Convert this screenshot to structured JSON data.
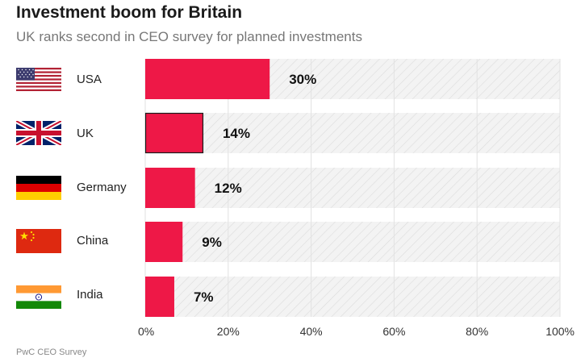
{
  "title": "Investment boom for Britain",
  "subtitle": "UK ranks second in CEO survey for planned investments",
  "source": "PwC CEO Survey",
  "colors": {
    "bar": "#ee1847",
    "highlight_stroke": "#1a1a1a",
    "track": "#f3f3f3",
    "hatch": "#dcdcdc",
    "grid": "#e2e2e2"
  },
  "chart_data": {
    "type": "bar",
    "orientation": "horizontal",
    "title": "Investment boom for Britain",
    "subtitle": "UK ranks second in CEO survey for planned investments",
    "categories": [
      "USA",
      "UK",
      "Germany",
      "China",
      "India"
    ],
    "values": [
      30,
      14,
      12,
      9,
      7
    ],
    "value_labels": [
      "30%",
      "14%",
      "12%",
      "9%",
      "7%"
    ],
    "highlight": "UK",
    "xlim": [
      0,
      100
    ],
    "xticks": [
      0,
      20,
      40,
      60,
      80,
      100
    ],
    "xtick_labels": [
      "0%",
      "20%",
      "40%",
      "60%",
      "80%",
      "100%"
    ],
    "unit": "%"
  },
  "flags": [
    "usa-flag",
    "uk-flag",
    "germany-flag",
    "china-flag",
    "india-flag"
  ]
}
